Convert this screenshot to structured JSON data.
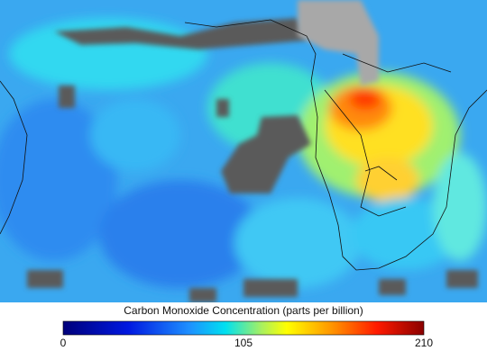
{
  "legend": {
    "title": "Carbon Monoxide Concentration (parts per billion)",
    "range": [
      0,
      210
    ],
    "ticks": [
      0,
      105,
      210
    ]
  }
}
